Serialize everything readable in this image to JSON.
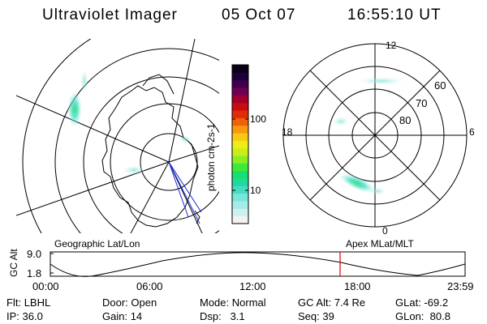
{
  "header": {
    "title": "Ultraviolet Imager",
    "date": "05 Oct 07",
    "time": "16:55:10 UT"
  },
  "colorbar": {
    "label": "photon cm-2s-1",
    "ticks": [
      "100",
      "10"
    ],
    "colors": [
      "#f2f2f2",
      "#cfeff0",
      "#a6ece6",
      "#7ae6d9",
      "#44dcc2",
      "#22d8a0",
      "#18e070",
      "#40e83a",
      "#8aee22",
      "#c8f018",
      "#f0ec18",
      "#f8c814",
      "#f8980f",
      "#f06008",
      "#e02c08",
      "#c80c10",
      "#a00030",
      "#720050",
      "#400050",
      "#1e0038",
      "#0a0018"
    ]
  },
  "left_panel": {
    "label": "Geographic Lat/Lon"
  },
  "right_panel": {
    "label": "Apex MLat/MLT",
    "lat_labels": [
      "80",
      "70",
      "60"
    ],
    "mlt_labels": {
      "top": "12",
      "bottom": "0",
      "left": "18",
      "right": "6"
    }
  },
  "altitude_plot": {
    "ylabel": "GC Alt",
    "yticks": [
      "9.0",
      "1.8"
    ],
    "xticks": [
      "00:00",
      "06:00",
      "12:00",
      "18:00",
      "23:59"
    ],
    "marker_time": "16:55:10"
  },
  "footer": {
    "rows": [
      [
        {
          "k": "Flt:",
          "v": "LBHL"
        },
        {
          "k": "Door:",
          "v": "Open"
        },
        {
          "k": "Mode:",
          "v": "Normal"
        },
        {
          "k": "GC Alt:",
          "v": "7.4 Re"
        },
        {
          "k": "GLat:",
          "v": "-69.2"
        }
      ],
      [
        {
          "k": "IP:",
          "v": "36.0"
        },
        {
          "k": "Gain:",
          "v": "14"
        },
        {
          "k": "Dsp:",
          "v": "3.1"
        },
        {
          "k": "Seq:",
          "v": "39"
        },
        {
          "k": "GLon:",
          "v": "80.8"
        }
      ]
    ]
  }
}
